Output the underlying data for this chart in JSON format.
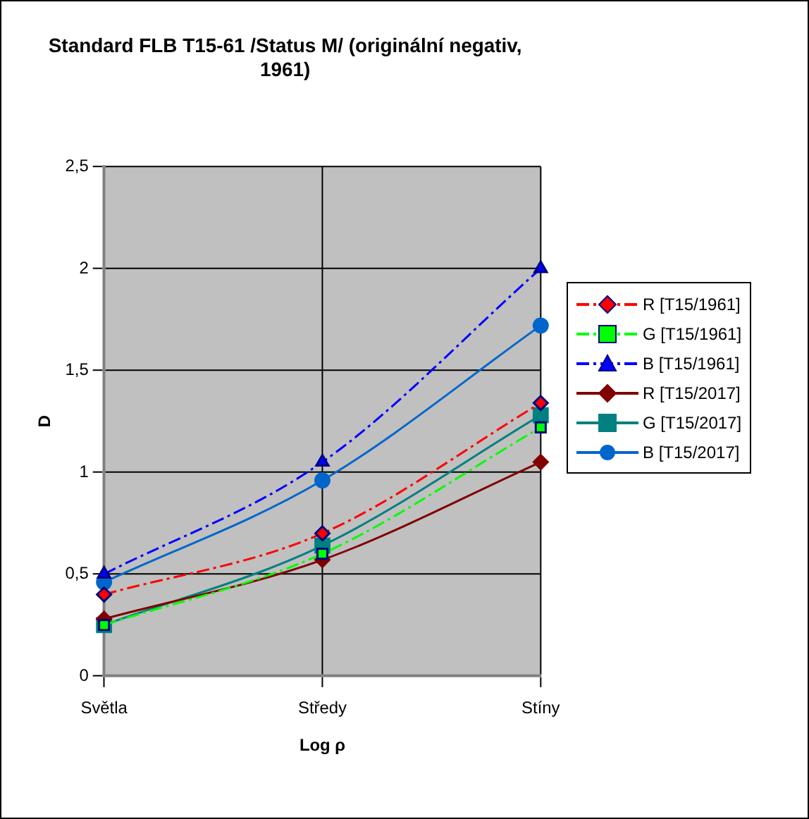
{
  "chart_data": {
    "type": "line",
    "title": [
      "Standard FLB T15-61 /Status M/ (originální negativ,",
      "1961)"
    ],
    "xlabel": "Log ρ",
    "ylabel": "D",
    "categories": [
      "Světla",
      "Středy",
      "Stíny"
    ],
    "series": [
      {
        "name": "R [T15/1961]",
        "color": "#ff0000",
        "values": [
          0.4,
          0.7,
          1.34
        ],
        "marker": "diamond",
        "line_style": "dashed"
      },
      {
        "name": "G [T15/1961]",
        "color": "#00ff00",
        "values": [
          0.25,
          0.6,
          1.22
        ],
        "marker": "square",
        "line_style": "dashed"
      },
      {
        "name": "B [T15/1961]",
        "color": "#0000ff",
        "values": [
          0.5,
          1.05,
          2.0
        ],
        "marker": "triangle",
        "line_style": "dashed"
      },
      {
        "name": "R [T15/2017]",
        "color": "#800000",
        "values": [
          0.28,
          0.57,
          1.05
        ],
        "marker": "diamond",
        "line_style": "solid"
      },
      {
        "name": "G [T15/2017]",
        "color": "#008080",
        "values": [
          0.25,
          0.64,
          1.28
        ],
        "marker": "square",
        "line_style": "solid"
      },
      {
        "name": "B [T15/2017]",
        "color": "#0066cc",
        "values": [
          0.46,
          0.96,
          1.72
        ],
        "marker": "circle",
        "line_style": "solid"
      }
    ],
    "ylim": [
      0,
      2.5
    ],
    "yticks": [
      0,
      {
        "value": 0.5,
        "label": "0,5"
      },
      1,
      {
        "value": 1.5,
        "label": "1,5"
      },
      2,
      {
        "value": 2.5,
        "label": "2,5"
      }
    ],
    "grid": true,
    "legend": "right"
  }
}
